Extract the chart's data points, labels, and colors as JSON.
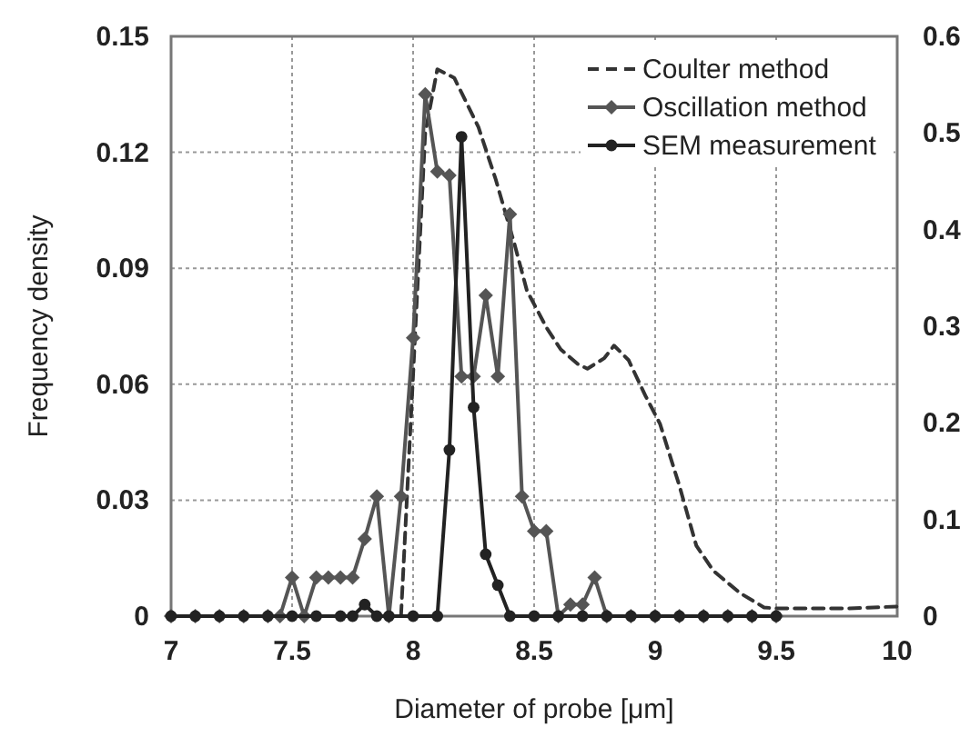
{
  "chart_data": {
    "type": "line",
    "xlabel": "Diameter of probe [μm]",
    "ylabel": "Frequency density",
    "xlim": [
      7,
      10
    ],
    "xticks": [
      7,
      7.5,
      8,
      8.5,
      9,
      9.5,
      10
    ],
    "ylim": [
      0,
      0.15
    ],
    "yticks": [
      0,
      0.03,
      0.06,
      0.09,
      0.12,
      0.15
    ],
    "y2lim": [
      0,
      0.6
    ],
    "y2ticks": [
      0,
      0.1,
      0.2,
      0.3,
      0.4,
      0.5,
      0.6
    ],
    "grid": true,
    "legend": "top right",
    "series": [
      {
        "name": "Coulter method",
        "color": "#333333",
        "axis": "y2",
        "line_style": "dashed",
        "marker": "none",
        "x": [
          7.95,
          8.0,
          8.05,
          8.1,
          8.17,
          8.27,
          8.34,
          8.42,
          8.47,
          8.55,
          8.61,
          8.68,
          8.72,
          8.79,
          8.83,
          8.89,
          8.96,
          9.02,
          9.1,
          9.17,
          9.24,
          9.35,
          9.45,
          9.5,
          9.6,
          9.8,
          10
        ],
        "values": [
          0,
          0.25,
          0.5,
          0.566,
          0.557,
          0.506,
          0.453,
          0.384,
          0.337,
          0.299,
          0.276,
          0.261,
          0.256,
          0.267,
          0.28,
          0.265,
          0.228,
          0.199,
          0.135,
          0.073,
          0.047,
          0.024,
          0.009,
          0.008,
          0.008,
          0.008,
          0.01
        ]
      },
      {
        "name": "Oscillation method",
        "color": "#555555",
        "line_style": "solid",
        "marker": "diamond",
        "x": [
          7,
          7.1,
          7.2,
          7.3,
          7.4,
          7.45,
          7.5,
          7.55,
          7.6,
          7.65,
          7.7,
          7.75,
          7.8,
          7.85,
          7.9,
          7.95,
          8.0,
          8.05,
          8.1,
          8.15,
          8.2,
          8.25,
          8.3,
          8.35,
          8.4,
          8.45,
          8.5,
          8.55,
          8.6,
          8.65,
          8.7,
          8.75,
          8.8,
          8.9,
          9.0,
          9.1,
          9.2,
          9.3,
          9.4,
          9.5
        ],
        "values": [
          0,
          0,
          0,
          0,
          0,
          0,
          0.01,
          0,
          0.01,
          0.01,
          0.01,
          0.01,
          0.02,
          0.031,
          0,
          0.031,
          0.072,
          0.135,
          0.115,
          0.114,
          0.062,
          0.062,
          0.083,
          0.062,
          0.104,
          0.031,
          0.022,
          0.022,
          0,
          0.003,
          0.003,
          0.01,
          0,
          0,
          0,
          0,
          0,
          0,
          0,
          0
        ]
      },
      {
        "name": "SEM measurement",
        "color": "#222222",
        "line_style": "solid",
        "marker": "circle",
        "x": [
          7,
          7.1,
          7.2,
          7.3,
          7.4,
          7.5,
          7.6,
          7.7,
          7.75,
          7.8,
          7.85,
          7.9,
          8.0,
          8.1,
          8.15,
          8.2,
          8.25,
          8.3,
          8.35,
          8.4,
          8.5,
          8.6,
          8.7,
          8.8,
          8.9,
          9.0,
          9.1,
          9.2,
          9.3,
          9.4,
          9.5
        ],
        "values": [
          0,
          0,
          0,
          0,
          0,
          0,
          0,
          0,
          0,
          0.003,
          0,
          0,
          0,
          0,
          0.043,
          0.124,
          0.054,
          0.016,
          0.008,
          0,
          0,
          0,
          0,
          0,
          0,
          0,
          0,
          0,
          0,
          0,
          0
        ]
      }
    ]
  }
}
